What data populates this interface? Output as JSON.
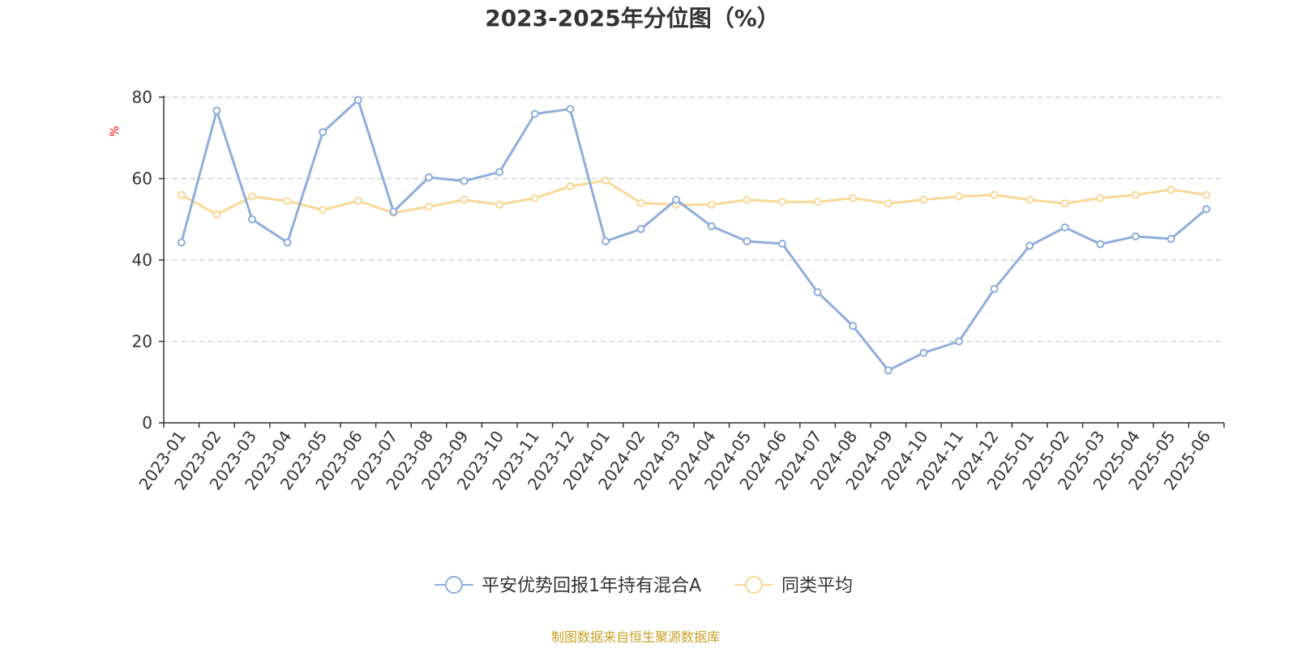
{
  "chart_data": {
    "type": "line",
    "title": "2023-2025年分位图（%）",
    "ylabel": "%",
    "xlabel": "",
    "ylim": [
      0,
      80
    ],
    "yticks": [
      0,
      20,
      40,
      60,
      80
    ],
    "grid": true,
    "legend_position": "bottom-center",
    "categories": [
      "2023-01",
      "2023-02",
      "2023-03",
      "2023-04",
      "2023-05",
      "2023-06",
      "2023-07",
      "2023-08",
      "2023-09",
      "2023-10",
      "2023-11",
      "2023-12",
      "2024-01",
      "2024-02",
      "2024-03",
      "2024-04",
      "2024-05",
      "2024-06",
      "2024-07",
      "2024-08",
      "2024-09",
      "2024-10",
      "2024-11",
      "2024-12",
      "2025-01",
      "2025-02",
      "2025-03",
      "2025-04",
      "2025-05",
      "2025-06"
    ],
    "series": [
      {
        "name": "平安优势回报1年持有混合A",
        "color": "#8eaedb",
        "values": [
          44.3,
          76.7,
          50.0,
          44.3,
          71.4,
          79.3,
          51.9,
          60.3,
          59.4,
          61.6,
          75.9,
          77.1,
          44.6,
          47.6,
          54.8,
          48.3,
          44.6,
          44.0,
          32.1,
          23.8,
          12.9,
          17.2,
          20.0,
          32.9,
          43.5,
          48.0,
          43.9,
          45.8,
          45.2,
          52.5
        ]
      },
      {
        "name": "同类平均",
        "color": "#fad897",
        "values": [
          56.0,
          51.2,
          55.6,
          54.5,
          52.3,
          54.5,
          51.6,
          53.1,
          54.8,
          53.6,
          55.2,
          58.1,
          59.5,
          54.0,
          53.6,
          53.6,
          54.8,
          54.3,
          54.3,
          55.2,
          53.9,
          54.8,
          55.6,
          56.0,
          54.8,
          53.9,
          55.2,
          56.0,
          57.3,
          56.0
        ]
      }
    ]
  },
  "footer": {
    "source": "制图数据来自恒生聚源数据库"
  }
}
